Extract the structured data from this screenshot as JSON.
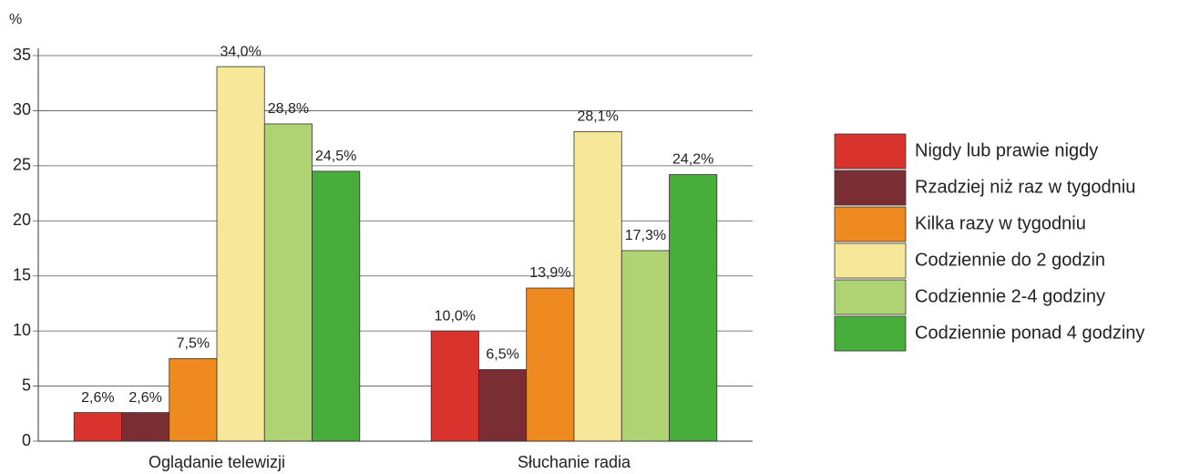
{
  "chart_data": {
    "type": "bar",
    "ylabel": "%",
    "categories": [
      "Oglądanie telewizji",
      "Słuchanie radia"
    ],
    "series": [
      {
        "name": "Nigdy lub prawie nigdy",
        "color": "#d9332e",
        "values": [
          2.6,
          10.0
        ],
        "value_labels": [
          "2,6%",
          "10,0%"
        ]
      },
      {
        "name": "Rzadziej niż raz w tygodniu",
        "color": "#7b2d34",
        "values": [
          2.6,
          6.5
        ],
        "value_labels": [
          "2,6%",
          "6,5%"
        ]
      },
      {
        "name": "Kilka razy w tygodniu",
        "color": "#ee8a1f",
        "values": [
          7.5,
          13.9
        ],
        "value_labels": [
          "7,5%",
          "13,9%"
        ]
      },
      {
        "name": "Codziennie do 2 godzin",
        "color": "#f6e898",
        "values": [
          34.0,
          28.1
        ],
        "value_labels": [
          "34,0%",
          "28,1%"
        ]
      },
      {
        "name": "Codziennie 2-4 godziny",
        "color": "#afd373",
        "values": [
          28.8,
          17.3
        ],
        "value_labels": [
          "28,8%",
          "17,3%"
        ]
      },
      {
        "name": "Codziennie ponad 4 godziny",
        "color": "#47ad3b",
        "values": [
          24.5,
          24.2
        ],
        "value_labels": [
          "24,5%",
          "24,2%"
        ]
      }
    ],
    "ylim": [
      0,
      35
    ],
    "yticks": [
      0,
      5,
      10,
      15,
      20,
      25,
      30,
      35
    ],
    "grid": true,
    "legend": "right"
  }
}
